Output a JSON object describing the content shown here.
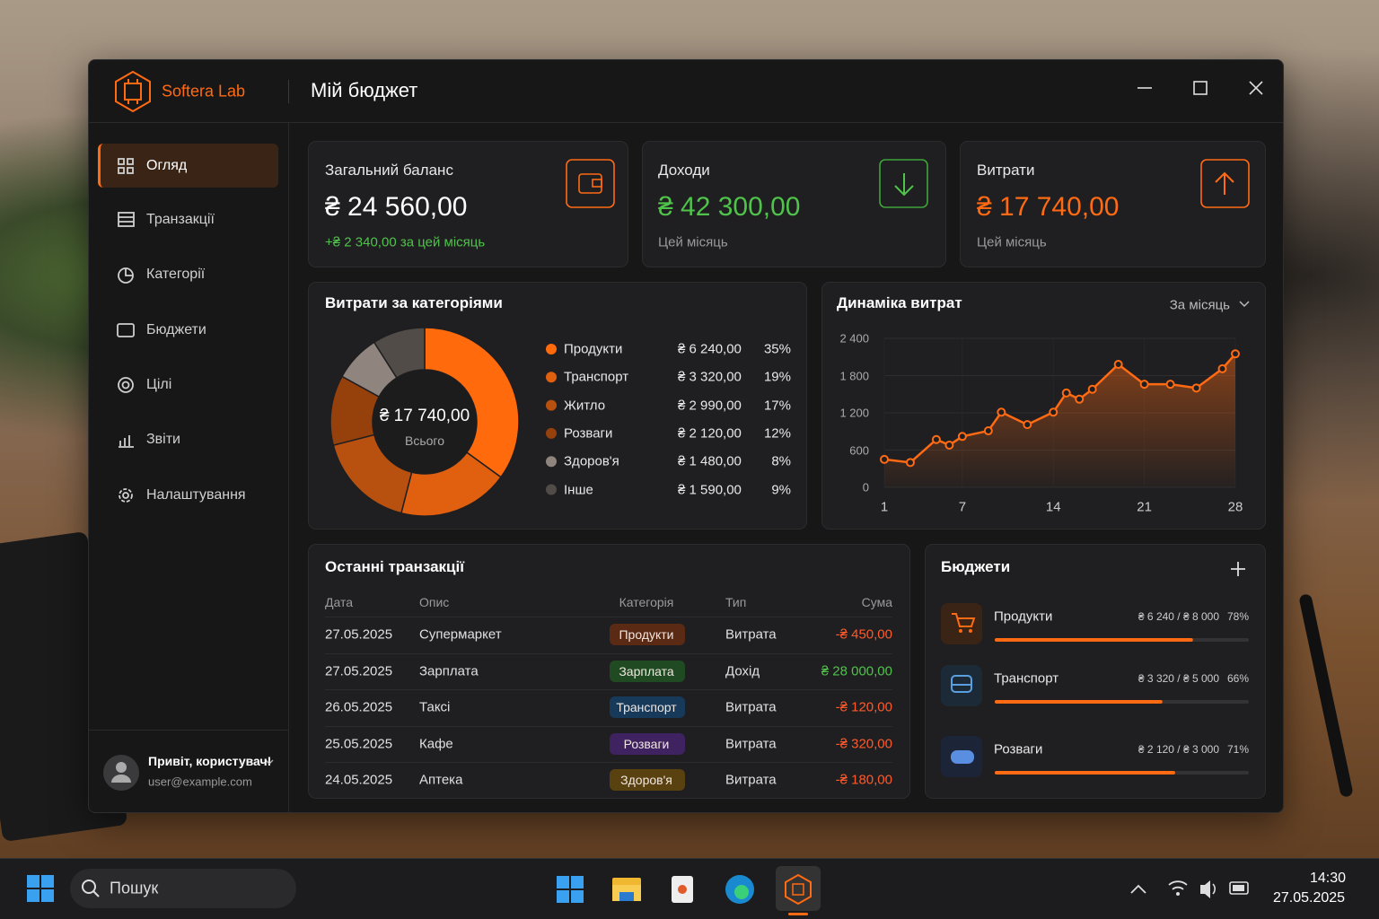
{
  "window": {
    "brand": "Softera Lab",
    "title": "Мій бюджет"
  },
  "nav": {
    "items": [
      {
        "label": "Огляд",
        "active": true
      },
      {
        "label": "Транзакції"
      },
      {
        "label": "Категорії"
      },
      {
        "label": "Бюджети"
      },
      {
        "label": "Цілі"
      },
      {
        "label": "Звіти"
      },
      {
        "label": "Налаштування"
      }
    ]
  },
  "user": {
    "greeting": "Привіт, користувач!",
    "email": "user@example.com"
  },
  "cards": [
    {
      "label": "Загальний баланс",
      "value": "₴ 24 560,00",
      "note": "+₴ 2 340,00 за цей місяць",
      "color": "#ffffff"
    },
    {
      "label": "Доходи",
      "value": "₴ 42 300,00",
      "note": "Цей місяць",
      "color": "#4fc34a"
    },
    {
      "label": "Витрати",
      "value": "₴ 17 740,00",
      "note": "Цей місяць",
      "color": "#ff6a13"
    }
  ],
  "chart_data": [
    {
      "type": "pie",
      "title": "Витрати за категоріями",
      "categories": [
        "Продукти",
        "Транспорт",
        "Житло",
        "Розваги",
        "Здоров'я",
        "Інше"
      ],
      "values": [
        35,
        19,
        17,
        12,
        8,
        9
      ],
      "value_labels": [
        "35%",
        "19%",
        "17%",
        "12%",
        "8%",
        "9%"
      ],
      "amounts": [
        "₴ 6 240,00",
        "₴ 3 320,00",
        "₴ 2 990,00",
        "₴ 2 120,00",
        "₴ 1 480,00",
        "₴ 1 590,00"
      ],
      "colors": [
        "#ff6a0d",
        "#e0600f",
        "#b8500f",
        "#96400c",
        "#8f857e",
        "#514c48"
      ],
      "total": "₴ 17 740,00",
      "total_label": "Всього"
    },
    {
      "type": "line",
      "title": "Динаміка витрат",
      "period": "За місяць",
      "x": [
        1,
        3,
        5,
        6,
        7,
        9,
        10,
        12,
        14,
        15,
        16,
        17,
        19,
        21,
        23,
        25,
        27,
        28
      ],
      "values": [
        450,
        400,
        770,
        680,
        820,
        910,
        1210,
        1010,
        1210,
        1520,
        1420,
        1580,
        1980,
        1660,
        1660,
        1600,
        1910,
        2150
      ],
      "color": "#ff6a13",
      "xlim": [
        1,
        28
      ],
      "xticks": [
        1,
        7,
        14,
        21,
        28
      ],
      "ylim": [
        0,
        2400
      ],
      "yticks": [
        0,
        600,
        {
          "value": 1200,
          "label": "1 200"
        },
        {
          "value": 1800,
          "label": "1 800"
        },
        {
          "value": 2400,
          "label": "2 400"
        }
      ],
      "grid": true
    }
  ],
  "transactions": {
    "title": "Останні транзакції",
    "columns": [
      "Дата",
      "Опис",
      "Категорія",
      "Тип",
      "Сума"
    ],
    "rows": [
      {
        "date": "27.05.2025",
        "desc": "Супермаркет",
        "category": "Продукти",
        "type": "Витрата",
        "amount": "-₴ 450,00",
        "tag_color": "#5a2a14",
        "amount_color": "#ff5a2a"
      },
      {
        "date": "27.05.2025",
        "desc": "Зарплата",
        "category": "Зарплата",
        "type": "Дохід",
        "amount": "₴ 28 000,00",
        "tag_color": "#1f4a22",
        "amount_color": "#4fc34a"
      },
      {
        "date": "26.05.2025",
        "desc": "Таксі",
        "category": "Транспорт",
        "type": "Витрата",
        "amount": "-₴ 120,00",
        "tag_color": "#173a5a",
        "amount_color": "#ff5a2a"
      },
      {
        "date": "25.05.2025",
        "desc": "Кафе",
        "category": "Розваги",
        "type": "Витрата",
        "amount": "-₴ 320,00",
        "tag_color": "#3f2260",
        "amount_color": "#ff5a2a"
      },
      {
        "date": "24.05.2025",
        "desc": "Аптека",
        "category": "Здоров'я",
        "type": "Витрата",
        "amount": "-₴ 180,00",
        "tag_color": "#5a4210",
        "amount_color": "#ff5a2a"
      }
    ]
  },
  "budgets": {
    "title": "Бюджети",
    "items": [
      {
        "name": "Продукти",
        "amount": "₴ 6 240 / ₴ 8 000",
        "percent": 78,
        "percent_label": "78%"
      },
      {
        "name": "Транспорт",
        "amount": "₴ 3 320 / ₴ 5 000",
        "percent": 66,
        "percent_label": "66%"
      },
      {
        "name": "Розваги",
        "amount": "₴ 2 120 / ₴ 3 000",
        "percent": 71,
        "percent_label": "71%"
      }
    ]
  },
  "taskbar": {
    "search": "Пошук",
    "time": "14:30",
    "date": "27.05.2025"
  }
}
